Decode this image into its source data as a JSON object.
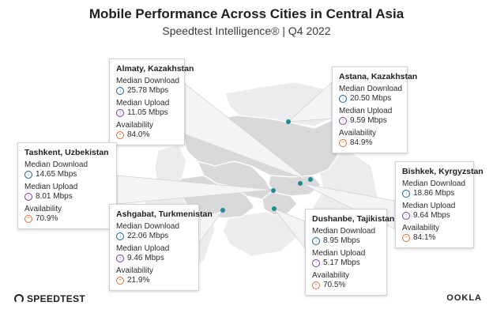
{
  "header": {
    "title": "Mobile Performance Across Cities in Central Asia",
    "subtitle": "Speedtest Intelligence® | Q4 2022"
  },
  "colors": {
    "land_focus": "#d9d9dc",
    "land_other": "#ececee",
    "border": "#ffffff",
    "marker": "#1d8a94",
    "download": "#1f5e8c",
    "upload": "#7a3aa8",
    "availability": "#e0703a"
  },
  "labels": {
    "download": "Median Download",
    "upload": "Median Upload",
    "availability": "Availability"
  },
  "cities": [
    {
      "name": "Almaty, Kazakhstan",
      "download": "25.78 Mbps",
      "upload": "11.05 Mbps",
      "availability": "84.0%"
    },
    {
      "name": "Astana, Kazakhstan",
      "download": "20.50 Mbps",
      "upload": "9.59 Mbps",
      "availability": "84.9%"
    },
    {
      "name": "Tashkent, Uzbekistan",
      "download": "14.65 Mbps",
      "upload": "8.01 Mbps",
      "availability": "70.9%"
    },
    {
      "name": "Bishkek, Kyrgyzstan",
      "download": "18.86 Mbps",
      "upload": "9.64 Mbps",
      "availability": "84.1%"
    },
    {
      "name": "Ashgabat, Turkmenistan",
      "download": "22.06 Mbps",
      "upload": "9.46 Mbps",
      "availability": "21.9%"
    },
    {
      "name": "Dushanbe, Tajikistan",
      "download": "8.95 Mbps",
      "upload": "5.17 Mbps",
      "availability": "70.5%"
    }
  ],
  "icons": {
    "download": "download-arrow-icon",
    "upload": "upload-arrow-icon",
    "availability": "availability-signal-icon"
  },
  "footer": {
    "left_logo": "SPEEDTEST",
    "right_logo": "OOKLA"
  }
}
